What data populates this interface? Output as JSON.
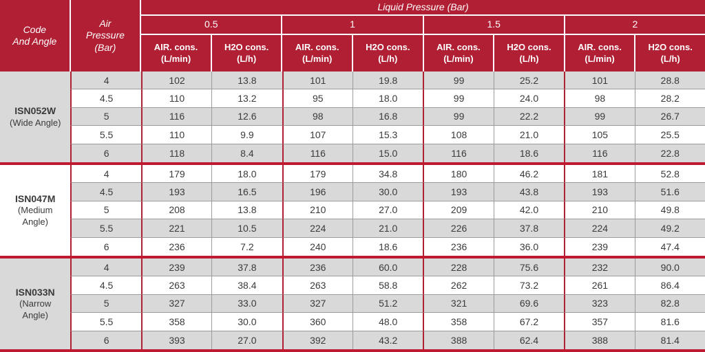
{
  "colors": {
    "header_red": "#b01f33",
    "separator_red": "#bf1a31",
    "row_gray": "#d9d9d9",
    "grid_line_gray": "#9b9b9b",
    "text_dark": "#3a3a3a"
  },
  "table": {
    "corner_header": "Code\nAnd Angle",
    "air_pressure_header": "Air\nPressure\n(Bar)",
    "liquid_pressure_header": "Liquid Pressure (Bar)",
    "pressure_columns": [
      "0.5",
      "1",
      "1.5",
      "2"
    ],
    "air_cons_label": "AIR. cons.\n(L/min)",
    "h2o_cons_label": "H2O cons.\n(L/h)",
    "groups": [
      {
        "code": "ISN052W",
        "angle": "(Wide Angle)",
        "rows": [
          {
            "air_pressure": "4",
            "values": [
              "102",
              "13.8",
              "101",
              "19.8",
              "99",
              "25.2",
              "101",
              "28.8"
            ]
          },
          {
            "air_pressure": "4.5",
            "values": [
              "110",
              "13.2",
              "95",
              "18.0",
              "99",
              "24.0",
              "98",
              "28.2"
            ]
          },
          {
            "air_pressure": "5",
            "values": [
              "116",
              "12.6",
              "98",
              "16.8",
              "99",
              "22.2",
              "99",
              "26.7"
            ]
          },
          {
            "air_pressure": "5.5",
            "values": [
              "110",
              "9.9",
              "107",
              "15.3",
              "108",
              "21.0",
              "105",
              "25.5"
            ]
          },
          {
            "air_pressure": "6",
            "values": [
              "118",
              "8.4",
              "116",
              "15.0",
              "116",
              "18.6",
              "116",
              "22.8"
            ]
          }
        ]
      },
      {
        "code": "ISN047M",
        "angle": "(Medium\nAngle)",
        "rows": [
          {
            "air_pressure": "4",
            "values": [
              "179",
              "18.0",
              "179",
              "34.8",
              "180",
              "46.2",
              "181",
              "52.8"
            ]
          },
          {
            "air_pressure": "4.5",
            "values": [
              "193",
              "16.5",
              "196",
              "30.0",
              "193",
              "43.8",
              "193",
              "51.6"
            ]
          },
          {
            "air_pressure": "5",
            "values": [
              "208",
              "13.8",
              "210",
              "27.0",
              "209",
              "42.0",
              "210",
              "49.8"
            ]
          },
          {
            "air_pressure": "5.5",
            "values": [
              "221",
              "10.5",
              "224",
              "21.0",
              "226",
              "37.8",
              "224",
              "49.2"
            ]
          },
          {
            "air_pressure": "6",
            "values": [
              "236",
              "7.2",
              "240",
              "18.6",
              "236",
              "36.0",
              "239",
              "47.4"
            ]
          }
        ]
      },
      {
        "code": "ISN033N",
        "angle": "(Narrow\nAngle)",
        "rows": [
          {
            "air_pressure": "4",
            "values": [
              "239",
              "37.8",
              "236",
              "60.0",
              "228",
              "75.6",
              "232",
              "90.0"
            ]
          },
          {
            "air_pressure": "4.5",
            "values": [
              "263",
              "38.4",
              "263",
              "58.8",
              "262",
              "73.2",
              "261",
              "86.4"
            ]
          },
          {
            "air_pressure": "5",
            "values": [
              "327",
              "33.0",
              "327",
              "51.2",
              "321",
              "69.6",
              "323",
              "82.8"
            ]
          },
          {
            "air_pressure": "5.5",
            "values": [
              "358",
              "30.0",
              "360",
              "48.0",
              "358",
              "67.2",
              "357",
              "81.6"
            ]
          },
          {
            "air_pressure": "6",
            "values": [
              "393",
              "27.0",
              "392",
              "43.2",
              "388",
              "62.4",
              "388",
              "81.4"
            ]
          }
        ]
      }
    ]
  }
}
